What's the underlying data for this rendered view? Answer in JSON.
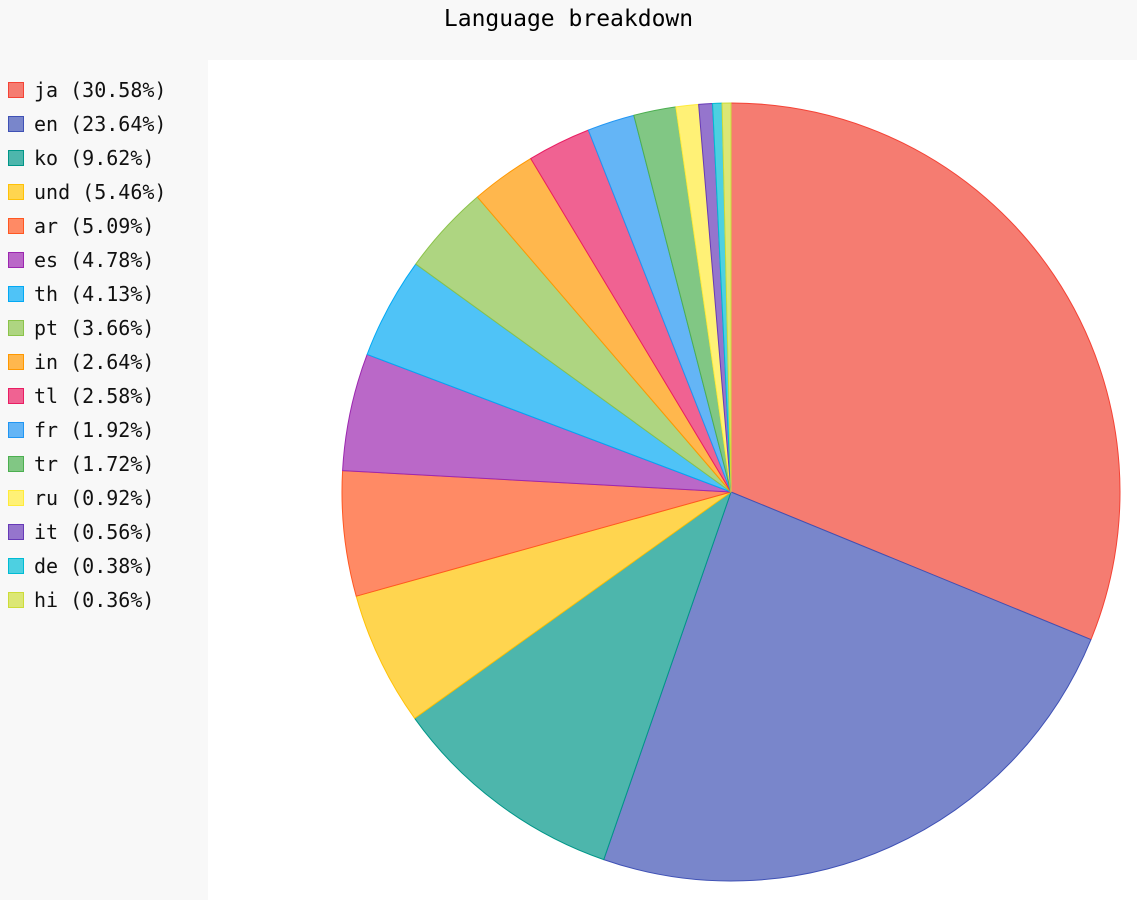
{
  "chart_data": {
    "type": "pie",
    "title": "Language breakdown",
    "legend_position": "left",
    "start_angle": "top, clockwise",
    "slices": [
      {
        "label": "ja (30.58%)",
        "name": "ja",
        "value": 30.58,
        "color": "#F57C71",
        "stroke": "#F44336"
      },
      {
        "label": "en (23.64%)",
        "name": "en",
        "value": 23.64,
        "color": "#7986CB",
        "stroke": "#3F51B5"
      },
      {
        "label": "ko (9.62%)",
        "name": "ko",
        "value": 9.62,
        "color": "#4DB6AC",
        "stroke": "#009688"
      },
      {
        "label": "und (5.46%)",
        "name": "und",
        "value": 5.46,
        "color": "#FFD54F",
        "stroke": "#FFC107"
      },
      {
        "label": "ar (5.09%)",
        "name": "ar",
        "value": 5.09,
        "color": "#FF8A65",
        "stroke": "#FF5722"
      },
      {
        "label": "es (4.78%)",
        "name": "es",
        "value": 4.78,
        "color": "#BA68C8",
        "stroke": "#9C27B0"
      },
      {
        "label": "th (4.13%)",
        "name": "th",
        "value": 4.13,
        "color": "#4FC3F7",
        "stroke": "#03A9F4"
      },
      {
        "label": "pt (3.66%)",
        "name": "pt",
        "value": 3.66,
        "color": "#AED581",
        "stroke": "#8BC34A"
      },
      {
        "label": "in (2.64%)",
        "name": "in",
        "value": 2.64,
        "color": "#FFB74D",
        "stroke": "#FF9800"
      },
      {
        "label": "tl (2.58%)",
        "name": "tl",
        "value": 2.58,
        "color": "#F06292",
        "stroke": "#E91E63"
      },
      {
        "label": "fr (1.92%)",
        "name": "fr",
        "value": 1.92,
        "color": "#64B5F6",
        "stroke": "#2196F3"
      },
      {
        "label": "tr (1.72%)",
        "name": "tr",
        "value": 1.72,
        "color": "#81C784",
        "stroke": "#4CAF50"
      },
      {
        "label": "ru (0.92%)",
        "name": "ru",
        "value": 0.92,
        "color": "#FFF176",
        "stroke": "#FFEB3B"
      },
      {
        "label": "it (0.56%)",
        "name": "it",
        "value": 0.56,
        "color": "#9575CD",
        "stroke": "#673AB7"
      },
      {
        "label": "de (0.38%)",
        "name": "de",
        "value": 0.38,
        "color": "#4DD0E1",
        "stroke": "#00BCD4"
      },
      {
        "label": "hi (0.36%)",
        "name": "hi",
        "value": 0.36,
        "color": "#DCE775",
        "stroke": "#CDDC39"
      }
    ]
  }
}
